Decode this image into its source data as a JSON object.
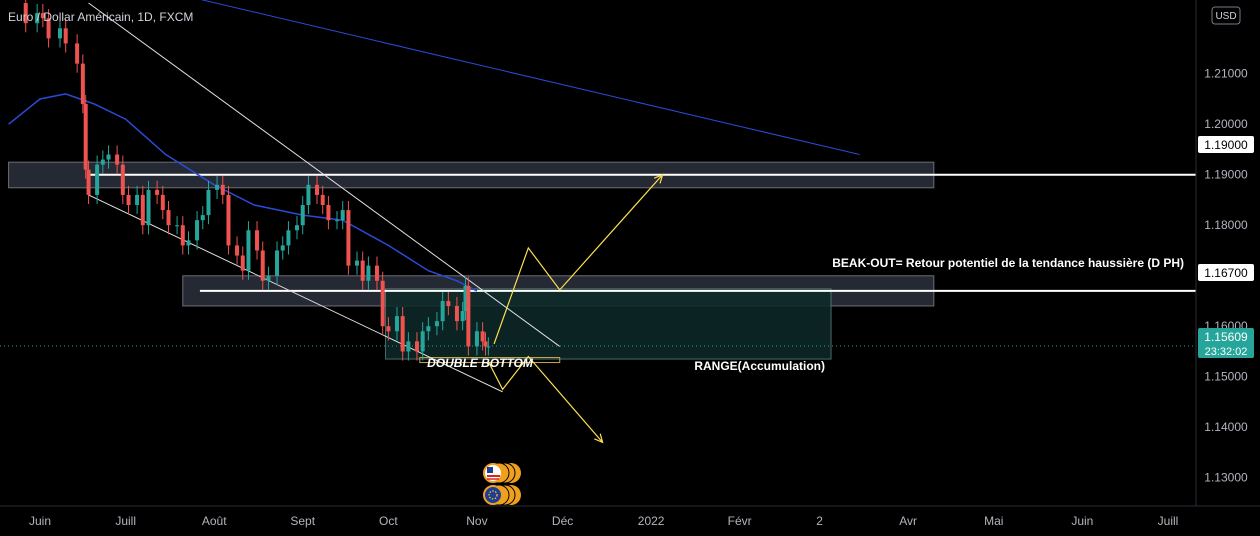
{
  "header": {
    "symbol": "Euro / Dollar Américain, 1D, FXCM",
    "currency": "USD"
  },
  "colors": {
    "bull": "#26a69a",
    "bear": "#ef5350",
    "ma": "#2a4bd7",
    "zone_fill": "#2a2e39",
    "range_fill": "#0d2a28",
    "range_stroke": "#5a7d78",
    "arrow": "#ffe14d",
    "level": "#ffffff",
    "price_tag": "#26a69a"
  },
  "price_tag": {
    "price": "1.15609",
    "countdown": "23:32:02"
  },
  "level_labels": [
    "1.19000",
    "1.16700"
  ],
  "annotations": {
    "breakout": "BEAK-OUT= Retour potentiel  de la tendance haussière (D PH)",
    "double_bottom": "DOUBLE BOTTOM",
    "range": "RANGE(Accumulation)"
  },
  "chart_data": {
    "type": "candlestick",
    "title": "Euro / Dollar Américain, 1D, FXCM",
    "y_ticks": [
      "1.21000",
      "1.20000",
      "1.19000",
      "1.18000",
      "1.17000",
      "1.16000",
      "1.15000",
      "1.14000",
      "1.13000"
    ],
    "y_tick_values": [
      1.21,
      1.2,
      1.19,
      1.18,
      1.17,
      1.16,
      1.15,
      1.14,
      1.13
    ],
    "ylim": [
      1.1244,
      1.2246
    ],
    "x_ticks": [
      {
        "label": "Juin",
        "date": "2021-06-01"
      },
      {
        "label": "Juill",
        "date": "2021-07-01"
      },
      {
        "label": "Août",
        "date": "2021-08-01"
      },
      {
        "label": "Sept",
        "date": "2021-09-01"
      },
      {
        "label": "Oct",
        "date": "2021-10-01"
      },
      {
        "label": "Nov",
        "date": "2021-11-01"
      },
      {
        "label": "Déc",
        "date": "2021-12-01"
      },
      {
        "label": "2022",
        "date": "2022-01-01"
      },
      {
        "label": "Févr",
        "date": "2022-02-01"
      },
      {
        "label": "2",
        "date": "2022-03-01"
      },
      {
        "label": "Avr",
        "date": "2022-04-01"
      },
      {
        "label": "Mai",
        "date": "2022-05-01"
      },
      {
        "label": "Juin",
        "date": "2022-06-01"
      },
      {
        "label": "Juill",
        "date": "2022-07-01"
      }
    ],
    "last_price": 1.15609,
    "key_levels": [
      1.19,
      1.167
    ],
    "closes": [
      [
        "2021-05-25",
        1.224
      ],
      [
        "2021-05-27",
        1.22
      ],
      [
        "2021-05-31",
        1.222
      ],
      [
        "2021-06-02",
        1.221
      ],
      [
        "2021-06-04",
        1.217
      ],
      [
        "2021-06-08",
        1.219
      ],
      [
        "2021-06-10",
        1.216
      ],
      [
        "2021-06-14",
        1.212
      ],
      [
        "2021-06-16",
        1.204
      ],
      [
        "2021-06-17",
        1.191
      ],
      [
        "2021-06-18",
        1.186
      ],
      [
        "2021-06-21",
        1.192
      ],
      [
        "2021-06-23",
        1.193
      ],
      [
        "2021-06-25",
        1.194
      ],
      [
        "2021-06-28",
        1.192
      ],
      [
        "2021-06-30",
        1.186
      ],
      [
        "2021-07-02",
        1.184
      ],
      [
        "2021-07-05",
        1.186
      ],
      [
        "2021-07-07",
        1.18
      ],
      [
        "2021-07-09",
        1.187
      ],
      [
        "2021-07-12",
        1.186
      ],
      [
        "2021-07-14",
        1.183
      ],
      [
        "2021-07-16",
        1.18
      ],
      [
        "2021-07-19",
        1.18
      ],
      [
        "2021-07-21",
        1.176
      ],
      [
        "2021-07-23",
        1.177
      ],
      [
        "2021-07-26",
        1.181
      ],
      [
        "2021-07-28",
        1.182
      ],
      [
        "2021-07-30",
        1.187
      ],
      [
        "2021-08-02",
        1.188
      ],
      [
        "2021-08-04",
        1.186
      ],
      [
        "2021-08-06",
        1.176
      ],
      [
        "2021-08-09",
        1.174
      ],
      [
        "2021-08-11",
        1.171
      ],
      [
        "2021-08-13",
        1.179
      ],
      [
        "2021-08-16",
        1.175
      ],
      [
        "2021-08-18",
        1.169
      ],
      [
        "2021-08-20",
        1.17
      ],
      [
        "2021-08-23",
        1.175
      ],
      [
        "2021-08-25",
        1.176
      ],
      [
        "2021-08-27",
        1.179
      ],
      [
        "2021-08-30",
        1.18
      ],
      [
        "2021-09-01",
        1.184
      ],
      [
        "2021-09-03",
        1.188
      ],
      [
        "2021-09-06",
        1.186
      ],
      [
        "2021-09-08",
        1.184
      ],
      [
        "2021-09-10",
        1.181
      ],
      [
        "2021-09-13",
        1.181
      ],
      [
        "2021-09-15",
        1.183
      ],
      [
        "2021-09-17",
        1.172
      ],
      [
        "2021-09-20",
        1.173
      ],
      [
        "2021-09-22",
        1.169
      ],
      [
        "2021-09-24",
        1.172
      ],
      [
        "2021-09-27",
        1.169
      ],
      [
        "2021-09-29",
        1.16
      ],
      [
        "2021-10-01",
        1.159
      ],
      [
        "2021-10-04",
        1.162
      ],
      [
        "2021-10-06",
        1.155
      ],
      [
        "2021-10-08",
        1.157
      ],
      [
        "2021-10-11",
        1.155
      ],
      [
        "2021-10-13",
        1.159
      ],
      [
        "2021-10-15",
        1.16
      ],
      [
        "2021-10-18",
        1.161
      ],
      [
        "2021-10-20",
        1.165
      ],
      [
        "2021-10-22",
        1.164
      ],
      [
        "2021-10-25",
        1.161
      ],
      [
        "2021-10-27",
        1.163
      ],
      [
        "2021-10-28",
        1.168
      ],
      [
        "2021-10-29",
        1.156
      ],
      [
        "2021-11-01",
        1.159
      ],
      [
        "2021-11-03",
        1.157
      ],
      [
        "2021-11-04",
        1.156
      ],
      [
        "2021-11-05",
        1.156
      ]
    ],
    "ma_series": [
      [
        "2021-05-21",
        1.2
      ],
      [
        "2021-06-01",
        1.205
      ],
      [
        "2021-06-10",
        1.206
      ],
      [
        "2021-06-20",
        1.204
      ],
      [
        "2021-07-01",
        1.201
      ],
      [
        "2021-07-15",
        1.194
      ],
      [
        "2021-08-01",
        1.188
      ],
      [
        "2021-08-15",
        1.184
      ],
      [
        "2021-09-01",
        1.182
      ],
      [
        "2021-09-15",
        1.181
      ],
      [
        "2021-10-01",
        1.176
      ],
      [
        "2021-10-15",
        1.171
      ],
      [
        "2021-10-25",
        1.169
      ],
      [
        "2021-11-01",
        1.167
      ]
    ],
    "long_trend_line": [
      [
        "2021-07-25",
        1.225
      ],
      [
        "2022-03-15",
        1.194
      ]
    ],
    "channel_upper": [
      [
        "2021-06-18",
        1.224
      ],
      [
        "2021-11-30",
        1.156
      ]
    ],
    "channel_lower": [
      [
        "2021-06-18",
        1.186
      ],
      [
        "2021-11-10",
        1.147
      ]
    ],
    "zones": [
      {
        "from": "2021-05-21",
        "to": "2022-04-10",
        "top": 1.1911,
        "bottom": 1.1888
      },
      {
        "from": "2021-07-21",
        "to": "2022-04-10",
        "top": 1.1686,
        "bottom": 1.1654
      }
    ],
    "range_box": {
      "from": "2021-09-30",
      "to": "2022-03-05",
      "top": 1.1674,
      "bottom": 1.1535
    },
    "double_bottom_box": {
      "from": "2021-10-12",
      "to": "2021-11-30",
      "top": 1.1538,
      "bottom": 1.153
    },
    "projection_up": [
      [
        "2021-11-07",
        1.1565
      ],
      [
        "2021-11-19",
        1.1755
      ],
      [
        "2021-11-30",
        1.1672
      ],
      [
        "2022-01-05",
        1.19
      ]
    ],
    "projection_down": [
      [
        "2021-11-05",
        1.153
      ],
      [
        "2021-11-10",
        1.1475
      ],
      [
        "2021-11-19",
        1.154
      ],
      [
        "2021-12-15",
        1.137
      ]
    ]
  }
}
